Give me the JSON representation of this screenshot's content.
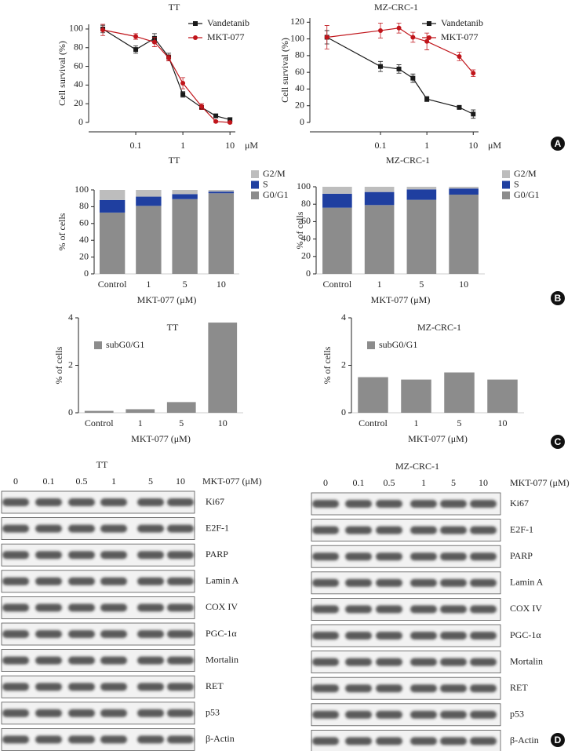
{
  "panel_labels": [
    "A",
    "B",
    "C",
    "D"
  ],
  "chart_data": [
    {
      "type": "line",
      "title": "TT",
      "ylabel": "Cell survival (%)",
      "xlabel": "μM",
      "log_x": true,
      "x": [
        0.02,
        0.1,
        0.25,
        0.5,
        1,
        2.5,
        5,
        10
      ],
      "xlim": [
        0.01,
        13
      ],
      "xticks": [
        0.1,
        1,
        10
      ],
      "ylim": [
        0,
        105
      ],
      "yticks": [
        0,
        20,
        40,
        60,
        80,
        100
      ],
      "legend": "upper right",
      "series": [
        {
          "name": "Vandetanib",
          "color": "#1a1a1a",
          "marker": "square",
          "values": [
            100,
            78,
            90,
            70,
            30,
            16,
            7,
            3
          ],
          "errors": [
            4,
            4,
            5,
            4,
            3,
            2,
            2,
            2
          ]
        },
        {
          "name": "MKT-077",
          "color": "#c0151b",
          "marker": "circle",
          "values": [
            99,
            92,
            86,
            69,
            42,
            17,
            1,
            0
          ],
          "errors": [
            6,
            3,
            5,
            3,
            6,
            3,
            1,
            1
          ]
        }
      ]
    },
    {
      "type": "line",
      "title": "MZ-CRC-1",
      "ylabel": "Cell survival (%)",
      "xlabel": "μM",
      "log_x": true,
      "x": [
        0.007,
        0.1,
        0.25,
        0.5,
        1,
        5,
        10
      ],
      "xlim": [
        0.003,
        13
      ],
      "xticks": [
        0.1,
        1,
        10
      ],
      "ylim": [
        0,
        125
      ],
      "yticks": [
        0,
        20,
        40,
        60,
        80,
        100,
        120
      ],
      "legend": "upper right",
      "series": [
        {
          "name": "Vandetanib",
          "color": "#1a1a1a",
          "marker": "square",
          "values": [
            102,
            67,
            64,
            53,
            28,
            18,
            10
          ],
          "errors": [
            8,
            6,
            5,
            5,
            3,
            2,
            5
          ]
        },
        {
          "name": "MKT-077",
          "color": "#c0151b",
          "marker": "circle",
          "values": [
            102,
            110,
            113,
            102,
            97,
            79,
            59
          ],
          "errors": [
            14,
            9,
            6,
            6,
            10,
            5,
            4
          ]
        }
      ]
    },
    {
      "type": "bar",
      "stacked": true,
      "title": "TT",
      "ylabel": "% of cells",
      "xlabel": "MKT-077 (μM)",
      "categories": [
        "Control",
        "1",
        "5",
        "10"
      ],
      "ylim": [
        0,
        100
      ],
      "yticks": [
        0,
        20,
        40,
        60,
        80,
        100
      ],
      "legend": "upper right",
      "series": [
        {
          "name": "G0/G1",
          "color": "#8c8c8c",
          "values": [
            73,
            81,
            89,
            96
          ]
        },
        {
          "name": "S",
          "color": "#1f3fa0",
          "values": [
            15,
            11,
            6,
            2
          ]
        },
        {
          "name": "G2/M",
          "color": "#bdbdbd",
          "values": [
            12,
            8,
            5,
            2
          ]
        }
      ]
    },
    {
      "type": "bar",
      "stacked": true,
      "title": "MZ-CRC-1",
      "ylabel": "% of cells",
      "xlabel": "MKT-077 (μM)",
      "categories": [
        "Control",
        "1",
        "5",
        "10"
      ],
      "ylim": [
        0,
        100
      ],
      "yticks": [
        0,
        20,
        40,
        60,
        80,
        100
      ],
      "legend": "upper right",
      "series": [
        {
          "name": "G0/G1",
          "color": "#8c8c8c",
          "values": [
            76,
            79,
            85,
            91
          ]
        },
        {
          "name": "S",
          "color": "#1f3fa0",
          "values": [
            16,
            15,
            12,
            7
          ]
        },
        {
          "name": "G2/M",
          "color": "#bdbdbd",
          "values": [
            8,
            6,
            3,
            2
          ]
        }
      ]
    },
    {
      "type": "bar",
      "stacked": false,
      "title": "TT",
      "ylabel": "% of cells",
      "xlabel": "MKT-077 (μM)",
      "categories": [
        "Control",
        "1",
        "5",
        "10"
      ],
      "ylim": [
        0,
        4
      ],
      "yticks": [
        0,
        2,
        4
      ],
      "legend": "upper left",
      "series": [
        {
          "name": "subG0/G1",
          "color": "#8c8c8c",
          "values": [
            0.08,
            0.15,
            0.45,
            3.8
          ]
        }
      ]
    },
    {
      "type": "bar",
      "stacked": false,
      "title": "MZ-CRC-1",
      "ylabel": "% of cells",
      "xlabel": "MKT-077 (μM)",
      "categories": [
        "Control",
        "1",
        "5",
        "10"
      ],
      "ylim": [
        0,
        4
      ],
      "yticks": [
        0,
        2,
        4
      ],
      "legend": "upper left",
      "series": [
        {
          "name": "subG0/G1",
          "color": "#8c8c8c",
          "values": [
            1.5,
            1.4,
            1.7,
            1.4
          ]
        }
      ]
    }
  ],
  "blots": [
    {
      "title": "TT",
      "concentrations": [
        "0",
        "0.1",
        "0.5",
        "1",
        "5",
        "10"
      ],
      "treatment": "MKT-077 (μM)",
      "proteins": [
        "Ki67",
        "E2F-1",
        "PARP",
        "Lamin A",
        "COX IV",
        "PGC-1α",
        "Mortalin",
        "RET",
        "p53",
        "β-Actin"
      ]
    },
    {
      "title": "MZ-CRC-1",
      "concentrations": [
        "0",
        "0.1",
        "0.5",
        "1",
        "5",
        "10"
      ],
      "treatment": "MKT-077 (μM)",
      "proteins": [
        "Ki67",
        "E2F-1",
        "PARP",
        "Lamin A",
        "COX IV",
        "PGC-1α",
        "Mortalin",
        "RET",
        "p53",
        "β-Actin"
      ]
    }
  ]
}
